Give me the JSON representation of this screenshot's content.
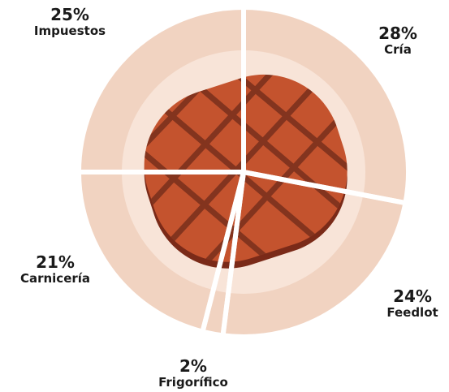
{
  "chart_data": {
    "type": "pie",
    "categories": [
      "Cría",
      "Feedlot",
      "Frigorífico",
      "Carnicería",
      "Impuestos"
    ],
    "values": [
      28,
      24,
      2,
      21,
      25
    ],
    "value_labels": [
      "28%",
      "24%",
      "2%",
      "21%",
      "25%"
    ],
    "color": "#f5dccd"
  }
}
